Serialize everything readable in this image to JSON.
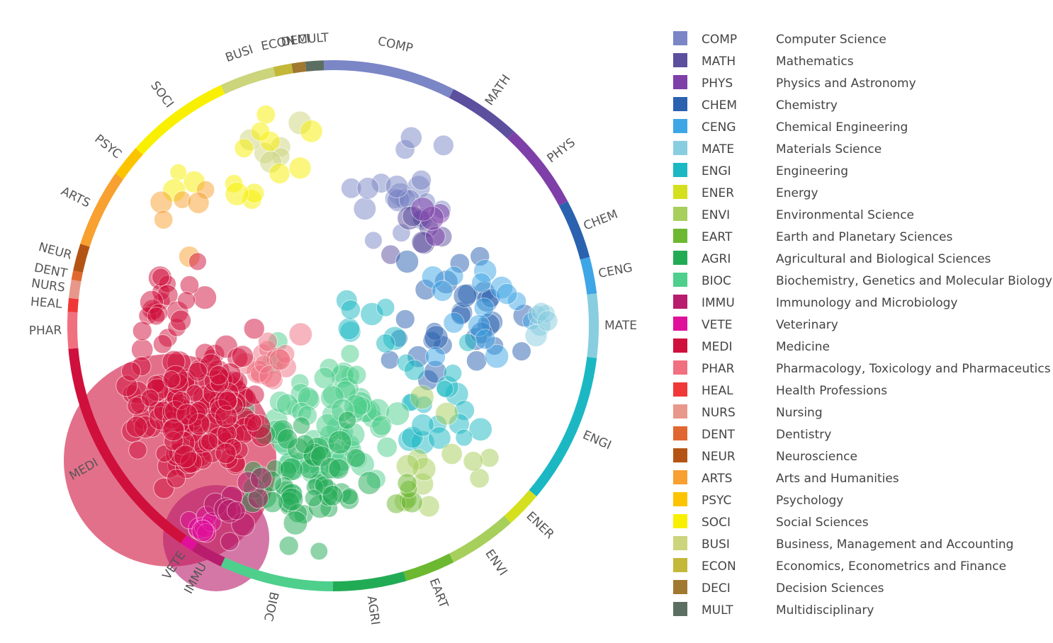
{
  "legend": {
    "items": [
      {
        "code": "COMP",
        "name": "Computer Science",
        "color": "#7b86c6"
      },
      {
        "code": "MATH",
        "name": "Mathematics",
        "color": "#5c4f9e"
      },
      {
        "code": "PHYS",
        "name": "Physics and Astronomy",
        "color": "#7e3fa8"
      },
      {
        "code": "CHEM",
        "name": "Chemistry",
        "color": "#2a62b0"
      },
      {
        "code": "CENG",
        "name": "Chemical Engineering",
        "color": "#3ea6e6"
      },
      {
        "code": "MATE",
        "name": "Materials Science",
        "color": "#88cde0"
      },
      {
        "code": "ENGI",
        "name": "Engineering",
        "color": "#1bb8c4"
      },
      {
        "code": "ENER",
        "name": "Energy",
        "color": "#d4e01e"
      },
      {
        "code": "ENVI",
        "name": "Environmental Science",
        "color": "#a6cf5c"
      },
      {
        "code": "EART",
        "name": "Earth and Planetary Sciences",
        "color": "#6cb830"
      },
      {
        "code": "AGRI",
        "name": "Agricultural and Biological Sciences",
        "color": "#22ab55"
      },
      {
        "code": "BIOC",
        "name": "Biochemistry, Genetics and Molecular Biology",
        "color": "#4ecf8c"
      },
      {
        "code": "IMMU",
        "name": "Immunology and Microbiology",
        "color": "#b81c6c"
      },
      {
        "code": "VETE",
        "name": "Veterinary",
        "color": "#e0109a"
      },
      {
        "code": "MEDI",
        "name": "Medicine",
        "color": "#d0103c"
      },
      {
        "code": "PHAR",
        "name": "Pharmacology, Toxicology and Pharmaceutics",
        "color": "#f07080"
      },
      {
        "code": "HEAL",
        "name": "Health Professions",
        "color": "#f03838"
      },
      {
        "code": "NURS",
        "name": "Nursing",
        "color": "#e8988a"
      },
      {
        "code": "DENT",
        "name": "Dentistry",
        "color": "#e06830"
      },
      {
        "code": "NEUR",
        "name": "Neuroscience",
        "color": "#b45414"
      },
      {
        "code": "ARTS",
        "name": "Arts and Humanities",
        "color": "#f8a030"
      },
      {
        "code": "PSYC",
        "name": "Psychology",
        "color": "#fcc400"
      },
      {
        "code": "SOCI",
        "name": "Social Sciences",
        "color": "#f8f000"
      },
      {
        "code": "BUSI",
        "name": "Business, Management and Accounting",
        "color": "#ccd47c"
      },
      {
        "code": "ECON",
        "name": "Economics, Econometrics and Finance",
        "color": "#c4b838"
      },
      {
        "code": "DECI",
        "name": "Decision Sciences",
        "color": "#a07830"
      },
      {
        "code": "MULT",
        "name": "Multidisciplinary",
        "color": "#5c6e62"
      }
    ]
  }
}
